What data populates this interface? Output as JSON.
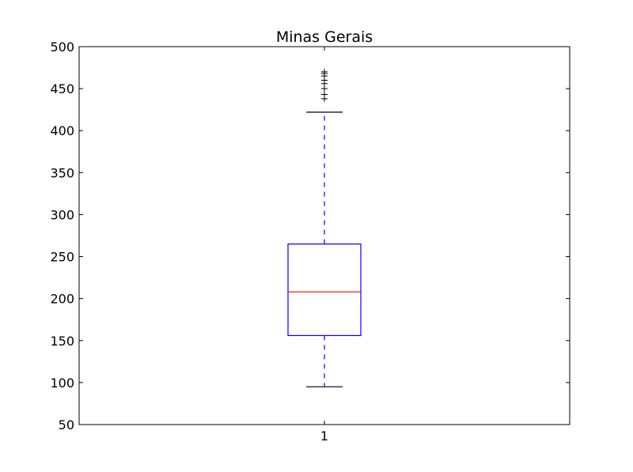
{
  "chart_data": {
    "type": "box",
    "title": "Minas Gerais",
    "xlabel": "",
    "ylabel": "",
    "ylim": [
      50,
      500
    ],
    "yticks": [
      50,
      100,
      150,
      200,
      250,
      300,
      350,
      400,
      450,
      500
    ],
    "categories": [
      "1"
    ],
    "boxes": [
      {
        "label": "1",
        "whisker_low": 95,
        "q1": 156,
        "median": 208,
        "q3": 265,
        "whisker_high": 422,
        "outliers": [
          438,
          443,
          450,
          456,
          460,
          465,
          468,
          470
        ]
      }
    ],
    "grid": false,
    "colors": {
      "box": "#0000ff",
      "median": "#ff0000",
      "whisker": "#0000ff",
      "cap": "#000000",
      "outlier": "#000000"
    }
  }
}
